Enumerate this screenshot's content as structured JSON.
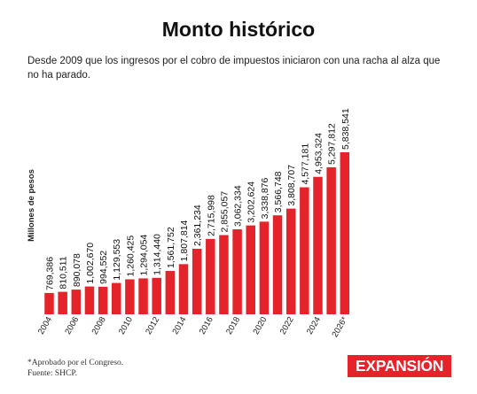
{
  "header": {
    "title": "Monto histórico",
    "subtitle": "Desde 2009 que los ingresos por el cobro de impuestos iniciaron con una racha al alza que no ha parado."
  },
  "chart_data": {
    "type": "bar",
    "title": "Monto histórico",
    "ylabel": "Millones de pesos",
    "xlabel": "",
    "categories": [
      "2004",
      "2005",
      "2006",
      "2007",
      "2008",
      "2009",
      "2010",
      "2011",
      "2012",
      "2013",
      "2014",
      "2015",
      "2016",
      "2017",
      "2018",
      "2019",
      "2020",
      "2021",
      "2022",
      "2023",
      "2024",
      "2025",
      "2026*"
    ],
    "tick_labels": [
      "2004",
      "2006",
      "2008",
      "2010",
      "2012",
      "2014",
      "2016",
      "2018",
      "2020",
      "2022",
      "2024",
      "2026*"
    ],
    "values": [
      769386,
      810511,
      890078,
      1002670,
      994552,
      1129553,
      1260425,
      1294054,
      1314440,
      1561752,
      1807814,
      2361234,
      2715998,
      2855057,
      3062334,
      3202624,
      3338876,
      3566748,
      3808707,
      4577181,
      4953324,
      5297812,
      5838541
    ],
    "value_labels": [
      "769,386",
      "810,511",
      "890,078",
      "1,002,670",
      "994,552",
      "1,129,553",
      "1,260,425",
      "1,294,054",
      "1,314,440",
      "1,561,752",
      "1,807,814",
      "2,361,234",
      "2,715,998",
      "2,855,057",
      "3,062,334",
      "3,202,624",
      "3,338,876",
      "3,566,748",
      "3,808,707",
      "4,577,181",
      "4,953,324",
      "5,297,812",
      "5,838,541"
    ],
    "ylim": [
      0,
      5838541
    ],
    "bar_color": "#e4232a",
    "grid": false,
    "legend": "none"
  },
  "footer": {
    "note": "*Aprobado por el Congreso.",
    "source": "Fuente: SHCP."
  },
  "brand": {
    "logo": "EXPANSIÓN",
    "color": "#e4232a"
  }
}
